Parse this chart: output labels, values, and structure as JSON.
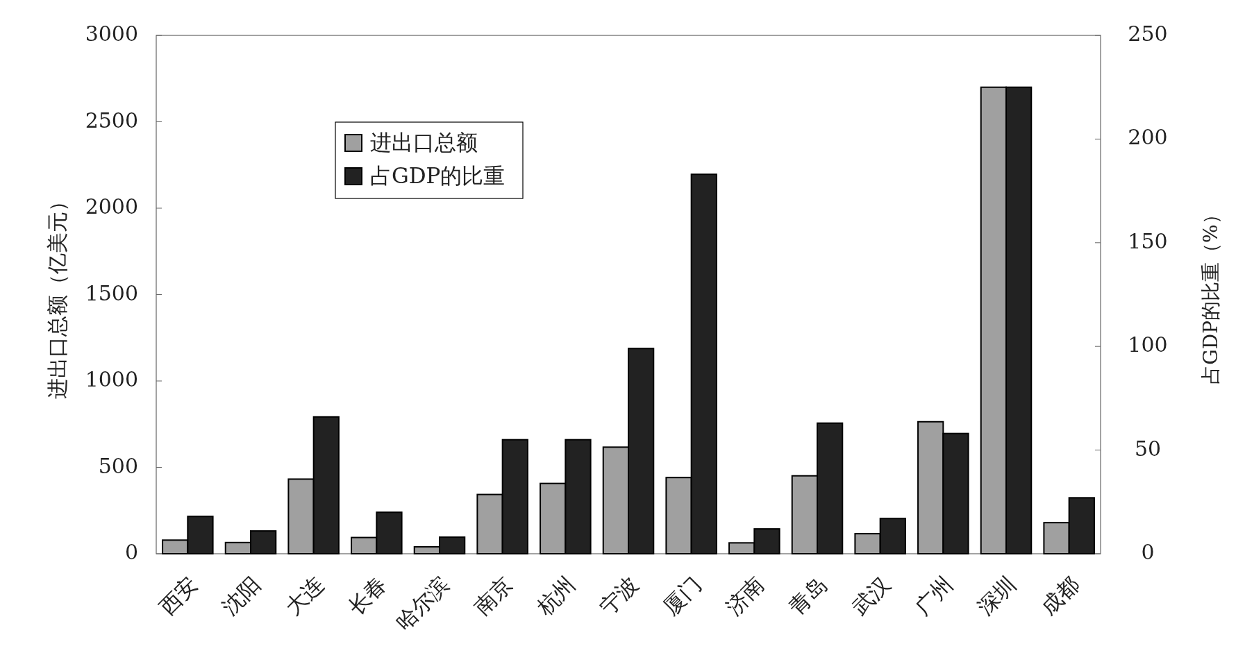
{
  "chart_data": {
    "type": "bar",
    "ylabel": "进出口总额（亿美元）",
    "y2label": "占GDP的比重（%）",
    "categories": [
      "西安",
      "沈阳",
      "大连",
      "长春",
      "哈尔滨",
      "南京",
      "杭州",
      "宁波",
      "厦门",
      "济南",
      "青岛",
      "武汉",
      "广州",
      "深圳",
      "成都"
    ],
    "series": [
      {
        "name": "进出口总额",
        "color": "#a0a0a0",
        "values": [
          79,
          65,
          432,
          94,
          40,
          343,
          407,
          617,
          441,
          63,
          451,
          116,
          764,
          2700,
          180
        ]
      },
      {
        "name": "占GDP的比重",
        "color": "#222222",
        "axis": "y2",
        "values": [
          18,
          11,
          66,
          20,
          8,
          55,
          55,
          99,
          183,
          12,
          63,
          17,
          58,
          225,
          27
        ]
      }
    ],
    "ylim": [
      0,
      3000
    ],
    "yticks": [
      0,
      500,
      1000,
      1500,
      2000,
      2500,
      3000
    ],
    "y2lim": [
      0,
      250
    ],
    "y2ticks": [
      0,
      50,
      100,
      150,
      200,
      250
    ],
    "legend": "top left",
    "grid": false
  }
}
